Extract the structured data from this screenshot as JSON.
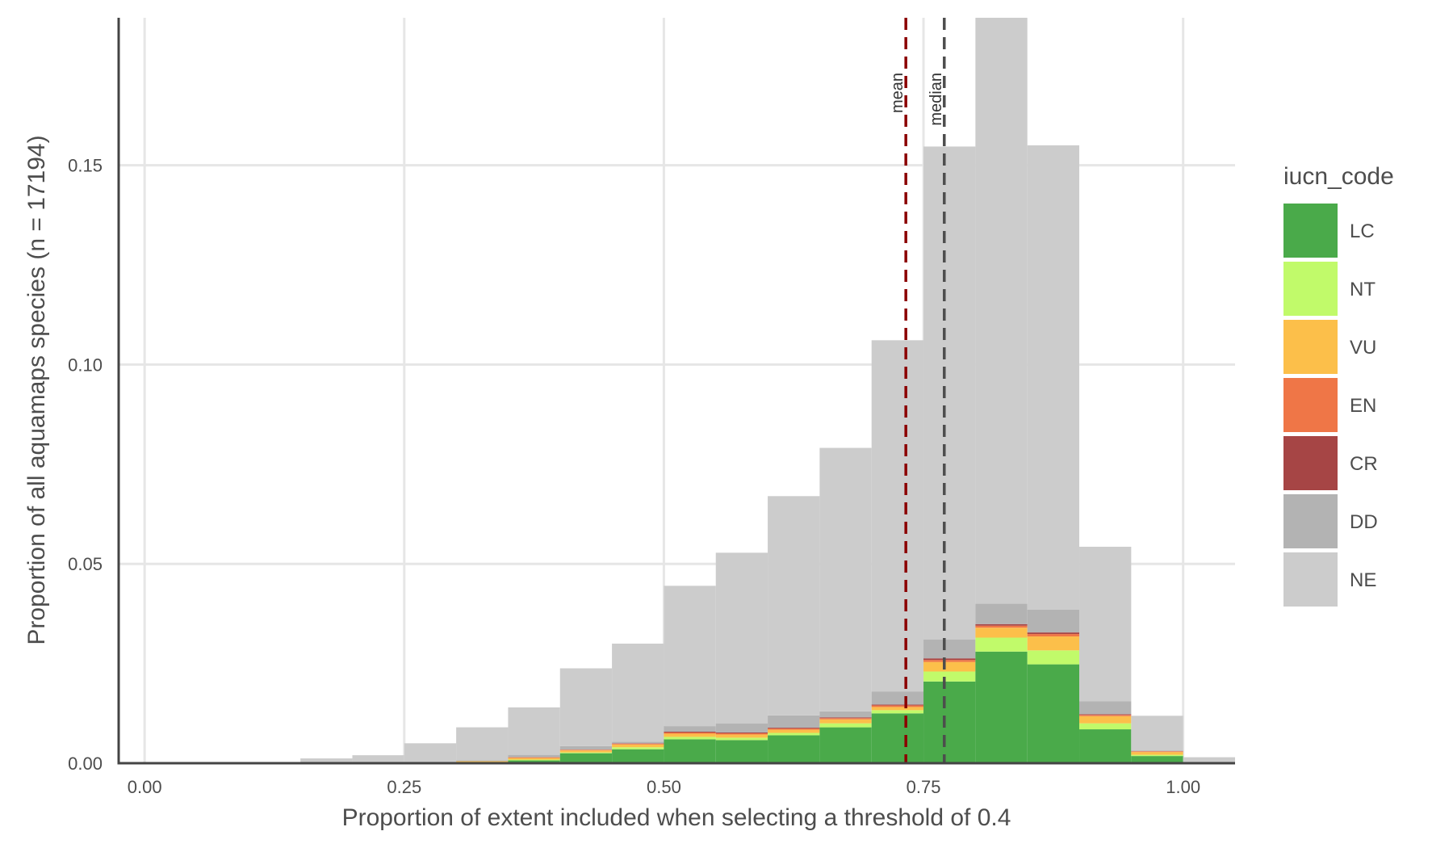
{
  "chart_data": {
    "type": "bar",
    "subtype": "stacked-histogram",
    "xlabel": "Proportion of extent included when selecting a threshold of 0.4",
    "ylabel": "Proportion of all aquamaps species (n = 17194)",
    "xlim": [
      -0.025,
      1.05
    ],
    "ylim": [
      0,
      0.187
    ],
    "x_ticks": [
      0,
      0.25,
      0.5,
      0.75,
      1.0
    ],
    "x_tick_labels": [
      "0.00",
      "0.25",
      "0.50",
      "0.75",
      "1.00"
    ],
    "y_ticks": [
      0,
      0.05,
      0.1,
      0.15
    ],
    "y_tick_labels": [
      "0.00",
      "0.05",
      "0.10",
      "0.15"
    ],
    "grid": true,
    "legend": {
      "title": "iucn_code",
      "placement": "right"
    },
    "bin_width": 0.05,
    "bins": [
      0.0,
      0.05,
      0.1,
      0.15,
      0.2,
      0.25,
      0.3,
      0.35,
      0.4,
      0.45,
      0.5,
      0.55,
      0.6,
      0.65,
      0.7,
      0.75,
      0.8,
      0.85,
      0.9,
      0.95,
      1.0
    ],
    "series": [
      {
        "name": "LC",
        "color": "#4aaa4a",
        "values": [
          0,
          0,
          0,
          0,
          0,
          0,
          0.0003,
          0.0007,
          0.0025,
          0.0035,
          0.006,
          0.0058,
          0.007,
          0.009,
          0.0125,
          0.0205,
          0.028,
          0.0248,
          0.0085,
          0.0018,
          0
        ]
      },
      {
        "name": "NT",
        "color": "#c1fa6a",
        "values": [
          0,
          0,
          0,
          0,
          0,
          0,
          0,
          0.0002,
          0.0002,
          0.0005,
          0.0006,
          0.0006,
          0.0006,
          0.001,
          0.0008,
          0.0025,
          0.0035,
          0.0035,
          0.0015,
          0.0003,
          0
        ]
      },
      {
        "name": "VU",
        "color": "#fcbf4a",
        "values": [
          0,
          0,
          0,
          0,
          0,
          0,
          0.0002,
          0.0004,
          0.0005,
          0.0007,
          0.0008,
          0.0008,
          0.0008,
          0.001,
          0.0008,
          0.0024,
          0.0025,
          0.0035,
          0.0018,
          0.0007,
          0
        ]
      },
      {
        "name": "EN",
        "color": "#ef7647",
        "values": [
          0,
          0,
          0,
          0,
          0,
          0,
          0,
          0.0002,
          0.0002,
          0.0002,
          0.0003,
          0.0003,
          0.0003,
          0.0003,
          0.0004,
          0.0005,
          0.0005,
          0.0006,
          0.0003,
          0.0002,
          0
        ]
      },
      {
        "name": "CR",
        "color": "#a64545",
        "values": [
          0,
          0,
          0,
          0,
          0,
          0,
          0,
          0,
          0,
          0.0001,
          0.0002,
          0.0002,
          0.0002,
          0.0002,
          0.0002,
          0.0004,
          0.0004,
          0.0004,
          0.0002,
          0,
          0
        ]
      },
      {
        "name": "DD",
        "color": "#b3b3b3",
        "values": [
          0,
          0,
          0,
          0,
          0,
          0,
          0.0002,
          0.0006,
          0.0009,
          0.0004,
          0.0014,
          0.0023,
          0.0031,
          0.0015,
          0.0033,
          0.0047,
          0.0051,
          0.0057,
          0.0032,
          0.0002,
          0
        ]
      },
      {
        "name": "NE",
        "color": "#cccccc",
        "values": [
          0,
          0.0003,
          0.0003,
          0.0012,
          0.002,
          0.005,
          0.0083,
          0.0119,
          0.0195,
          0.0246,
          0.0352,
          0.0428,
          0.055,
          0.0661,
          0.0881,
          0.1237,
          0.147,
          0.1165,
          0.0388,
          0.0087,
          0.0015
        ]
      }
    ],
    "reference_lines": [
      {
        "name": "mean",
        "x": 0.733,
        "color": "#8b0000"
      },
      {
        "name": "median",
        "x": 0.77,
        "color": "#4d4d4d"
      }
    ]
  }
}
